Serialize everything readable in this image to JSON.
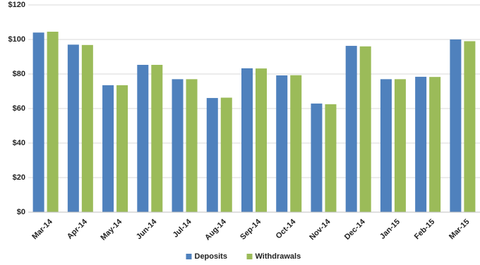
{
  "chart_data": {
    "type": "bar",
    "categories": [
      "Mar-14",
      "Apr-14",
      "May-14",
      "Jun-14",
      "Jul-14",
      "Aug-14",
      "Sep-14",
      "Oct-14",
      "Nov-14",
      "Dec-14",
      "Jan-15",
      "Feb-15",
      "Mar-15"
    ],
    "series": [
      {
        "name": "Deposits",
        "color": "#4f81bd",
        "values": [
          104,
          97,
          73.5,
          85.3,
          77,
          66.1,
          83.3,
          79.2,
          62.9,
          96.3,
          77,
          78.4,
          100
        ]
      },
      {
        "name": "Withdrawals",
        "color": "#9bbb59",
        "values": [
          104.5,
          96.8,
          73.5,
          85.3,
          77,
          66.3,
          83.2,
          79.3,
          62.5,
          96,
          77,
          78.3,
          99
        ]
      }
    ],
    "ylim": [
      0,
      120
    ],
    "yticks": [
      {
        "value": 0,
        "label": "$0"
      },
      {
        "value": 20,
        "label": "$20"
      },
      {
        "value": 40,
        "label": "$40"
      },
      {
        "value": 60,
        "label": "$60"
      },
      {
        "value": 80,
        "label": "$80"
      },
      {
        "value": 100,
        "label": "$100"
      },
      {
        "value": 120,
        "label": "$120"
      }
    ],
    "grid": true,
    "legend": "bottom"
  }
}
